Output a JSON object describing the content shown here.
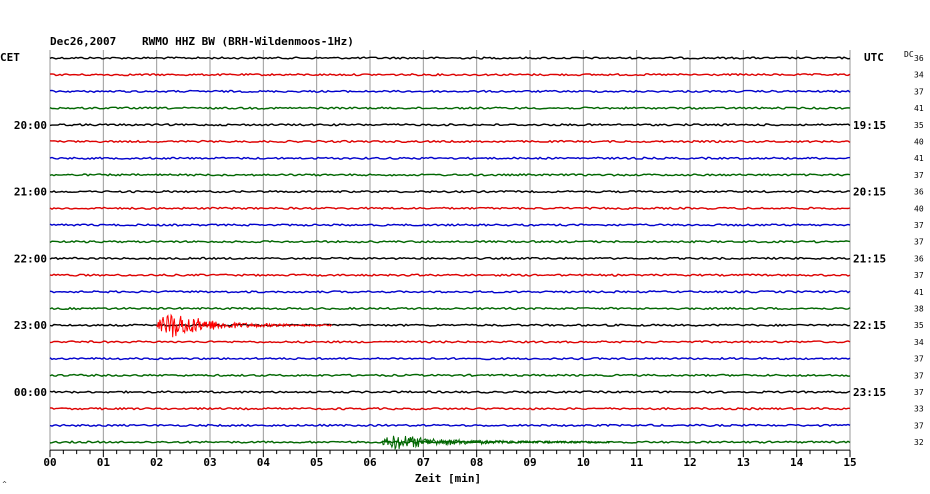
{
  "header": {
    "date": "Dec26,2007",
    "station": "RWMO HHZ BW (BRH-Wildenmoos-1Hz)",
    "left_tz": "CET",
    "right_tz": "UTC",
    "dc_label": "DC"
  },
  "chart_data": {
    "type": "line",
    "title": "Dec26,2007   RWMO HHZ BW (BRH-Wildenmoos-1Hz)",
    "xlabel": "Zeit [min]",
    "xlim": [
      0,
      15
    ],
    "x_ticks": [
      "00",
      "01",
      "02",
      "03",
      "04",
      "05",
      "06",
      "07",
      "08",
      "09",
      "10",
      "11",
      "12",
      "13",
      "14",
      "15"
    ],
    "left_hour_labels": [
      "20:00",
      "21:00",
      "22:00",
      "23:00",
      "00:00"
    ],
    "right_hour_labels": [
      "19:15",
      "20:15",
      "21:15",
      "22:15",
      "23:15"
    ],
    "trace_colors": [
      "#000000",
      "#dd0000",
      "#0000cc",
      "#006600"
    ],
    "dc_values": [
      "36",
      "34",
      "37",
      "41",
      "35",
      "40",
      "41",
      "37",
      "36",
      "40",
      "37",
      "37",
      "36",
      "37",
      "41",
      "38",
      "35",
      "34",
      "37",
      "37",
      "37",
      "33",
      "37",
      "32"
    ],
    "events": [
      {
        "trace_index": 16,
        "color": "#ff0000",
        "start_min": 2.0,
        "peak_min": 2.3,
        "end_min": 5.3
      },
      {
        "trace_index": 23,
        "color": "#006600",
        "start_min": 6.2,
        "peak_min": 6.5,
        "end_min": 10.5
      }
    ],
    "grid": true
  }
}
